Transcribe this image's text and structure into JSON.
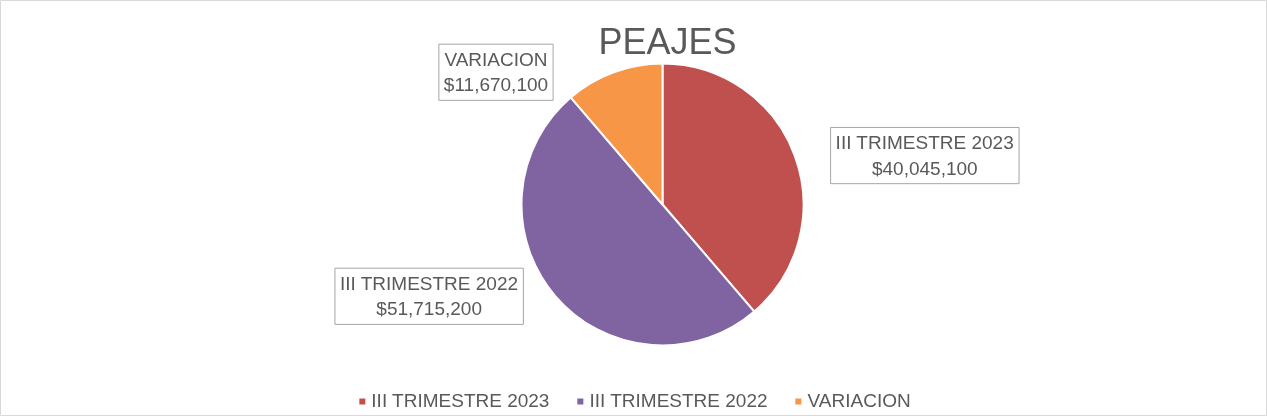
{
  "chart_data": {
    "type": "pie",
    "title": "PEAJES",
    "categories": [
      "III TRIMESTRE 2023",
      "III TRIMESTRE 2022",
      "VARIACION"
    ],
    "values": [
      40045100,
      51715200,
      11670100
    ],
    "value_labels": [
      "$40,045,100",
      "$51,715,200",
      "$11,670,100"
    ],
    "colors": [
      "#c0504d",
      "#8064a2",
      "#f79646"
    ],
    "legend": "bottom"
  }
}
